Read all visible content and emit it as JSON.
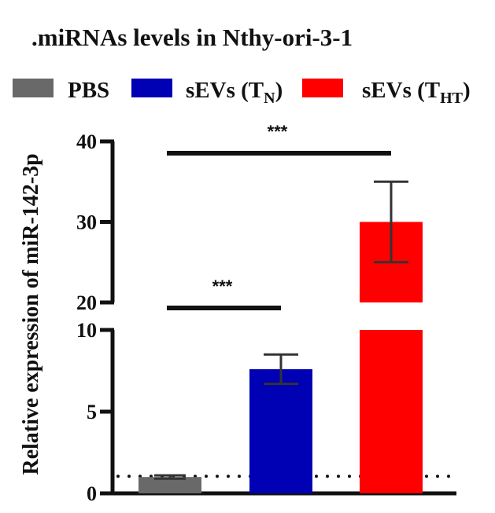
{
  "chart_data": {
    "type": "bar",
    "title": ".miRNAs levels in Nthy-ori-3-1",
    "ylabel": "Relative expression of miR-142-3p",
    "categories": [
      "PBS",
      "sEVs (TN)",
      "sEVs (THT)"
    ],
    "legend": [
      {
        "text": "PBS",
        "sub": "",
        "color": "#696969"
      },
      {
        "text": "sEVs (T",
        "sub": "N",
        "tail": ")",
        "color": "#0000b4"
      },
      {
        "text": "sEVs (T",
        "sub": "HT",
        "tail": ")",
        "color": "#ff0000"
      }
    ],
    "series": [
      {
        "values": [
          1.0,
          7.6,
          30.0
        ],
        "errors": [
          0.1,
          0.9,
          5.0
        ]
      }
    ],
    "colors": [
      "#696969",
      "#0000b4",
      "#ff0000"
    ],
    "ylim": [
      0,
      40
    ],
    "y_axis_break": [
      10,
      20
    ],
    "lower_ticks": [
      0,
      5,
      10
    ],
    "upper_ticks": [
      20,
      30,
      40
    ],
    "reference_line": 1,
    "significance": [
      {
        "from": 0,
        "to": 1,
        "label": "***"
      },
      {
        "from": 0,
        "to": 2,
        "label": "***"
      }
    ],
    "legend_position": "top",
    "grid": false
  }
}
